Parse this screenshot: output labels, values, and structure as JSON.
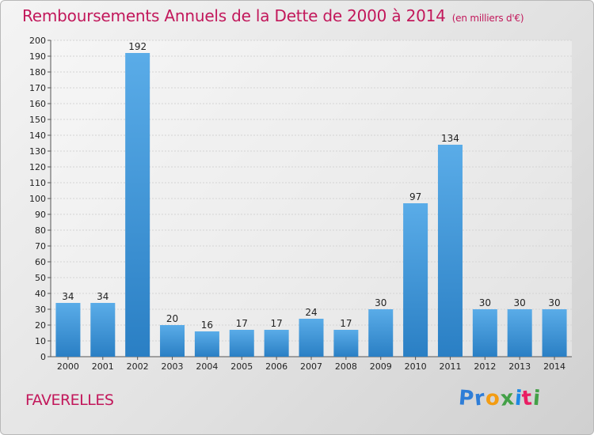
{
  "page": {
    "title": "Remboursements Annuels de la Dette de 2000 à 2014",
    "unit": "(en milliers d'€)",
    "commune": "FAVERELLES",
    "brand": {
      "letters": [
        "P",
        "r",
        "o",
        "x",
        "i",
        "t",
        "i"
      ],
      "colors": [
        "#2e7dd7",
        "#2e7dd7",
        "#f39c12",
        "#43a047",
        "#1e88e5",
        "#e91e63",
        "#43a047"
      ]
    }
  },
  "colors": {
    "accent": "#c2185b",
    "bar_light": "#5aace8",
    "bar_dark": "#2a7fc4"
  },
  "chart_data": {
    "type": "bar",
    "title": "Remboursements Annuels de la Dette de 2000 à 2014",
    "xlabel": "",
    "ylabel": "",
    "categories": [
      "2000",
      "2001",
      "2002",
      "2003",
      "2004",
      "2005",
      "2006",
      "2007",
      "2008",
      "2009",
      "2010",
      "2011",
      "2012",
      "2013",
      "2014"
    ],
    "values": [
      34,
      34,
      192,
      20,
      16,
      17,
      17,
      24,
      17,
      30,
      97,
      134,
      30,
      30,
      30
    ],
    "ylim": [
      0,
      200
    ],
    "yticks": [
      0,
      10,
      20,
      30,
      40,
      50,
      60,
      70,
      80,
      90,
      100,
      110,
      120,
      130,
      140,
      150,
      160,
      170,
      180,
      190,
      200
    ],
    "grid": true,
    "legend": "none"
  }
}
